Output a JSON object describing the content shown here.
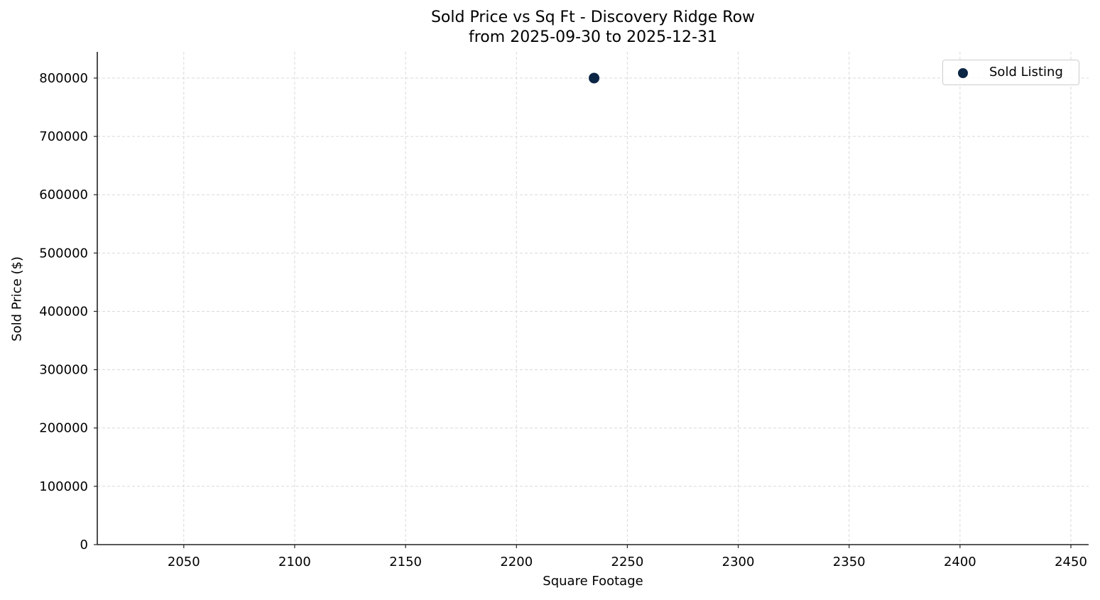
{
  "chart": {
    "title_line1": "Sold Price vs Sq Ft - Discovery Ridge Row",
    "title_line2": "from 2025-09-30 to 2025-12-31",
    "xlabel": "Square Footage",
    "ylabel": "Sold Price ($)",
    "legend_label": "Sold Listing",
    "marker_color": "#0b2545"
  },
  "chart_data": {
    "type": "scatter",
    "title": "Sold Price vs Sq Ft - Discovery Ridge Row\nfrom 2025-09-30 to 2025-12-31",
    "xlabel": "Square Footage",
    "ylabel": "Sold Price ($)",
    "series": [
      {
        "name": "Sold Listing",
        "color": "#0b2545",
        "points": [
          {
            "x": 2235,
            "y": 800000
          }
        ]
      }
    ],
    "x_ticks": [
      2050,
      2100,
      2150,
      2200,
      2250,
      2300,
      2350,
      2400,
      2450
    ],
    "y_ticks": [
      0,
      100000,
      200000,
      300000,
      400000,
      500000,
      600000,
      700000,
      800000
    ],
    "xlim": [
      2011,
      2458
    ],
    "ylim": [
      0,
      845000
    ],
    "grid": true,
    "legend_position": "upper right"
  }
}
